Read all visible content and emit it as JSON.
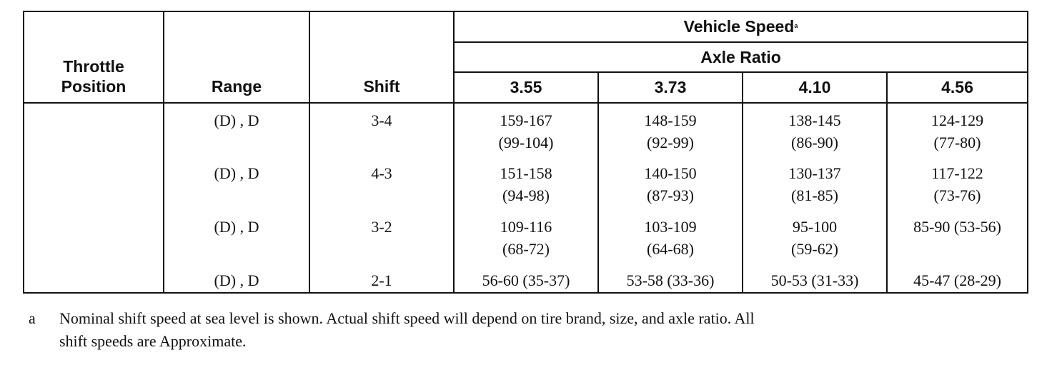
{
  "table": {
    "header": {
      "throttle": [
        "Throttle",
        "Position"
      ],
      "range": "Range",
      "shift": "Shift",
      "vehicle_speed": "Vehicle Speed",
      "vehicle_speed_note": "a",
      "axle_ratio": "Axle Ratio",
      "ratios": [
        "3.55",
        "3.73",
        "4.10",
        "4.56"
      ]
    },
    "rows": [
      {
        "range": "(D) , D",
        "shift": "3-4",
        "speeds": [
          [
            "159-167",
            "(99-104)"
          ],
          [
            "148-159",
            "(92-99)"
          ],
          [
            "138-145",
            "(86-90)"
          ],
          [
            "124-129",
            "(77-80)"
          ]
        ]
      },
      {
        "range": "(D) , D",
        "shift": "4-3",
        "speeds": [
          [
            "151-158",
            "(94-98)"
          ],
          [
            "140-150",
            "(87-93)"
          ],
          [
            "130-137",
            "(81-85)"
          ],
          [
            "117-122",
            "(73-76)"
          ]
        ]
      },
      {
        "range": "(D) , D",
        "shift": "3-2",
        "speeds": [
          [
            "109-116",
            "(68-72)"
          ],
          [
            "103-109",
            "(64-68)"
          ],
          [
            "95-100",
            "(59-62)"
          ],
          [
            "85-90 (53-56)"
          ]
        ]
      },
      {
        "range": "(D) , D",
        "shift": "2-1",
        "speeds": [
          [
            "56-60 (35-37)"
          ],
          [
            "53-58 (33-36)"
          ],
          [
            "50-53 (31-33)"
          ],
          [
            "45-47 (28-29)"
          ]
        ]
      }
    ]
  },
  "footnote": {
    "marker": "a",
    "lines": [
      "Nominal shift speed at sea level is shown. Actual shift speed will depend on tire brand, size, and axle ratio. All",
      "shift speeds are Approximate."
    ]
  }
}
